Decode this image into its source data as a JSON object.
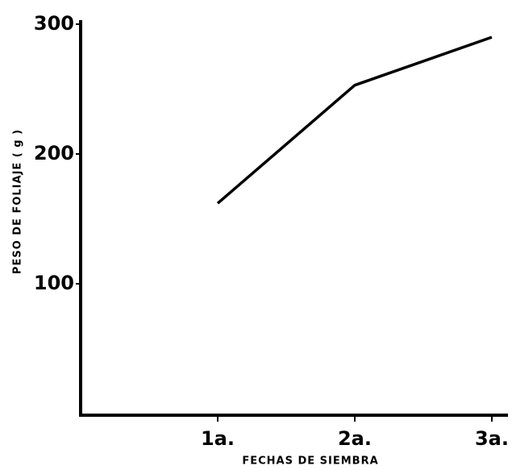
{
  "chart_data": {
    "type": "line",
    "xlabel": "FECHAS DE SIEMBRA",
    "ylabel": "PESO DE FOLIAJE ( g )",
    "categories": [
      null,
      "1a.",
      "2a.",
      "3a."
    ],
    "series": [
      {
        "name": null,
        "color": "#000000",
        "values": [
          null,
          162,
          253,
          290
        ]
      }
    ],
    "ylim": [
      0,
      300
    ],
    "yticks": [
      100,
      200,
      300
    ]
  }
}
